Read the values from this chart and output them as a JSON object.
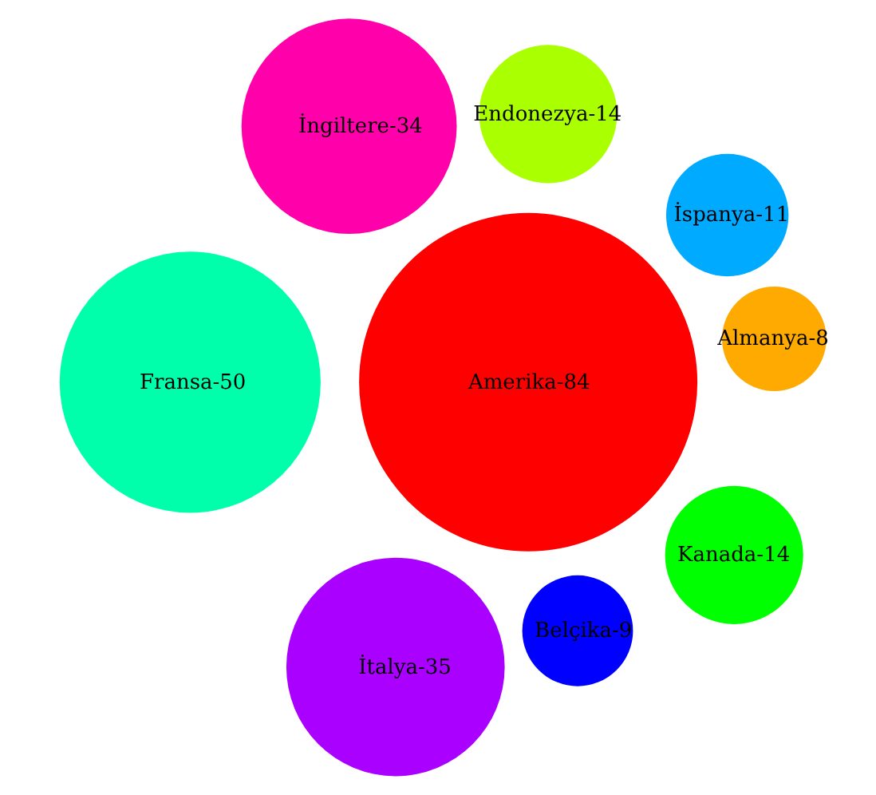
{
  "chart_data": {
    "type": "other",
    "categories": [
      "Amerika-",
      "Fransa-",
      "İtalya-",
      "İngiltere-",
      "Kanada-",
      "Endonezya-",
      "İspanya-",
      "Belçika-",
      "Almanya-"
    ],
    "values": [
      84,
      50,
      35,
      34,
      14,
      14,
      11,
      9,
      8
    ],
    "colors": [
      "#ff0000",
      "#00ffaa",
      "#aa00ff",
      "#ff00aa",
      "#00ff00",
      "#aaff00",
      "#00aaff",
      "#0000ff",
      "#ffaa00"
    ],
    "data_labels": true
  }
}
